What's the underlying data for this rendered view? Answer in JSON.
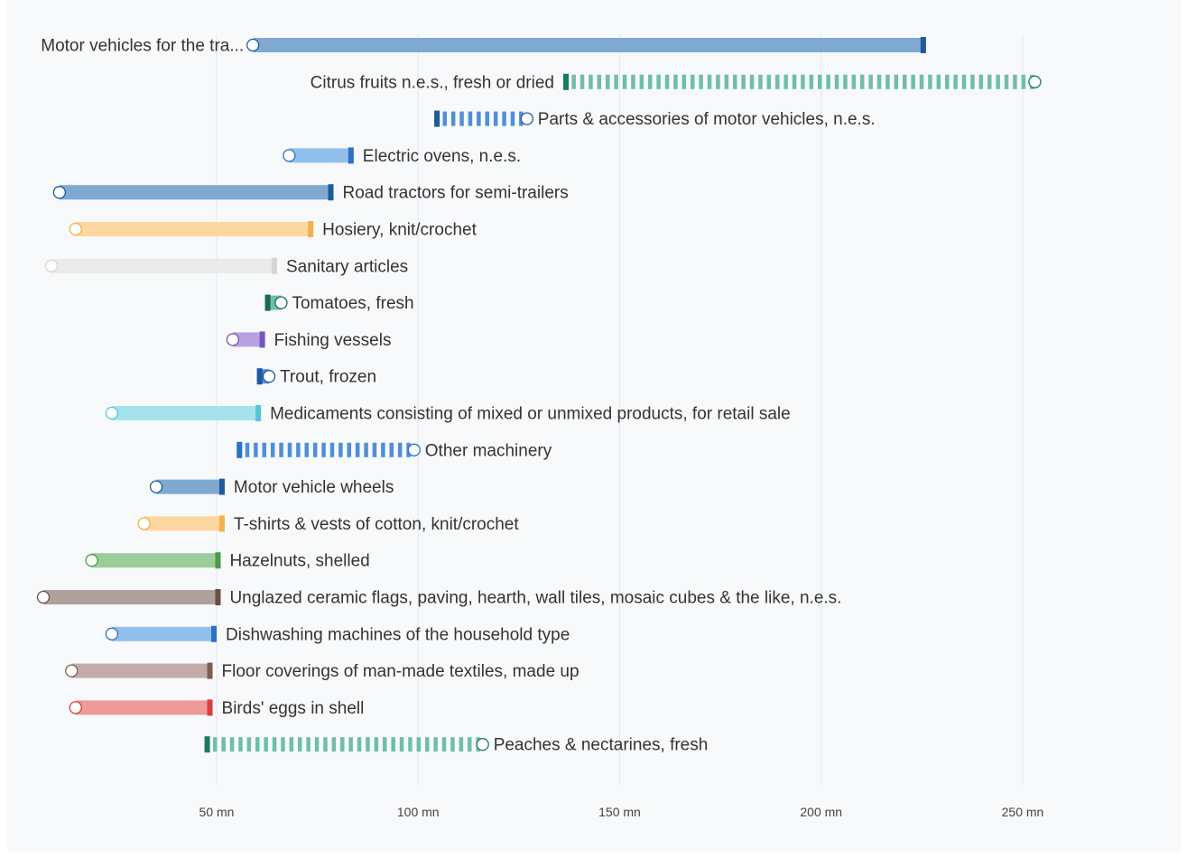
{
  "chart_data": {
    "type": "bar",
    "variant": "dumbbell-range",
    "x_tick_labels": [
      "50 mn",
      "100 mn",
      "150 mn",
      "200 mn",
      "250 mn"
    ],
    "x_ticks": [
      50,
      100,
      150,
      200,
      250
    ],
    "xlim": [
      -3,
      263
    ],
    "grid": true,
    "title": "",
    "xlabel": "",
    "ylabel": "",
    "rows": [
      {
        "label": "Motor vehicles for the tra...",
        "start": 59,
        "end": 226,
        "color": "#7fa9d1",
        "accent": "#1f5a9e",
        "style": "solid",
        "label_pos": "left"
      },
      {
        "label": "Citrus fruits n.e.s., fresh or dried",
        "start": 253,
        "end": 136,
        "color": "#6fbfa8",
        "accent": "#1a7a62",
        "style": "striped",
        "label_pos": "left"
      },
      {
        "label": "Parts & accessories of motor vehicles, n.e.s.",
        "start": 127,
        "end": 104,
        "color": "#4f8fd9",
        "accent": "#1f5a9e",
        "style": "striped",
        "label_pos": "right"
      },
      {
        "label": "Electric ovens, n.e.s.",
        "start": 68,
        "end": 84,
        "color": "#92bfec",
        "accent": "#2a72c4",
        "style": "solid",
        "label_pos": "right"
      },
      {
        "label": "Road tractors for semi-trailers",
        "start": 11,
        "end": 79,
        "color": "#7fa9d1",
        "accent": "#1f5a9e",
        "style": "solid",
        "label_pos": "right"
      },
      {
        "label": "Hosiery, knit/crochet",
        "start": 15,
        "end": 74,
        "color": "#fcd7a1",
        "accent": "#f6b04a",
        "style": "solid",
        "label_pos": "right"
      },
      {
        "label": "Sanitary articles",
        "start": 9,
        "end": 65,
        "color": "#eaeaea",
        "accent": "#d6d6d6",
        "style": "solid",
        "label_pos": "right"
      },
      {
        "label": "Tomatoes, fresh",
        "start": 66,
        "end": 62,
        "color": "#6fbfa8",
        "accent": "#1a6b55",
        "style": "solid",
        "label_pos": "right"
      },
      {
        "label": "Fishing vessels",
        "start": 54,
        "end": 62,
        "color": "#b8a1df",
        "accent": "#7a55c0",
        "style": "solid",
        "label_pos": "right"
      },
      {
        "label": "Trout, frozen",
        "start": 63,
        "end": 60,
        "color": "#4f8fd9",
        "accent": "#1f5a9e",
        "style": "solid",
        "label_pos": "right"
      },
      {
        "label": "Medicaments consisting of mixed or unmixed products, for retail sale",
        "start": 24,
        "end": 61,
        "color": "#a5e3ec",
        "accent": "#55c7d8",
        "style": "solid",
        "label_pos": "right"
      },
      {
        "label": "Other machinery",
        "start": 99,
        "end": 55,
        "color": "#4f8fd9",
        "accent": "#2a72c4",
        "style": "striped",
        "label_pos": "right"
      },
      {
        "label": "Motor vehicle wheels",
        "start": 35,
        "end": 52,
        "color": "#7fa9d1",
        "accent": "#1f5a9e",
        "style": "solid",
        "label_pos": "right"
      },
      {
        "label": "T-shirts & vests of cotton, knit/crochet",
        "start": 32,
        "end": 52,
        "color": "#fcd7a1",
        "accent": "#f6b04a",
        "style": "solid",
        "label_pos": "right"
      },
      {
        "label": "Hazelnuts, shelled",
        "start": 19,
        "end": 51,
        "color": "#9ccb9c",
        "accent": "#4c9a4c",
        "style": "solid",
        "label_pos": "right"
      },
      {
        "label": "Unglazed ceramic flags, paving, hearth, wall tiles, mosaic cubes & the like, n.e.s.",
        "start": 7,
        "end": 51,
        "color": "#b0a09b",
        "accent": "#6b4f44",
        "style": "solid",
        "label_pos": "right"
      },
      {
        "label": "Dishwashing machines of the household type",
        "start": 24,
        "end": 50,
        "color": "#92bfec",
        "accent": "#2a72c4",
        "style": "solid",
        "label_pos": "right"
      },
      {
        "label": "Floor coverings of man-made textiles, made up",
        "start": 14,
        "end": 49,
        "color": "#c2aca7",
        "accent": "#7a5d52",
        "style": "solid",
        "label_pos": "right"
      },
      {
        "label": "Birds' eggs in shell",
        "start": 15,
        "end": 49,
        "color": "#ec9a9a",
        "accent": "#d94141",
        "style": "solid",
        "label_pos": "right"
      },
      {
        "label": "Peaches & nectarines, fresh",
        "start": 116,
        "end": 47,
        "color": "#6fbfa8",
        "accent": "#1a7a62",
        "style": "striped",
        "label_pos": "right"
      }
    ]
  }
}
